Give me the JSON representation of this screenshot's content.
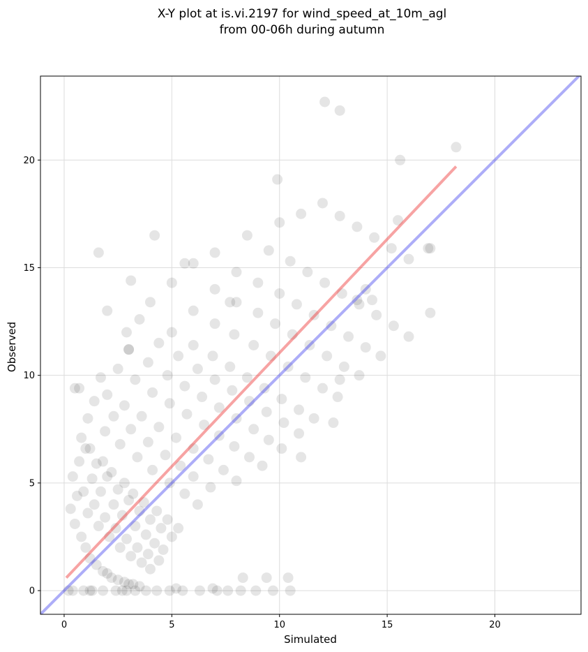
{
  "chart_data": {
    "type": "scatter",
    "title_lines": [
      "X-Y plot at is.vi.2197 for wind_speed_at_10m_agl",
      "from 00-06h during autumn"
    ],
    "xlabel": "Simulated",
    "ylabel": "Observed",
    "xlim": [
      -1.1,
      24
    ],
    "ylim": [
      -1.1,
      23.9
    ],
    "xticks": [
      0,
      5,
      10,
      15,
      20
    ],
    "yticks": [
      0,
      5,
      10,
      15,
      20
    ],
    "grid": true,
    "marker_color": "#000000",
    "marker_alpha": 0.1,
    "fit_line": {
      "color": "#ee3333",
      "alpha": 0.45,
      "x": [
        0.1,
        18.2
      ],
      "y": [
        0.6,
        19.7
      ]
    },
    "identity_line": {
      "color": "#3333ee",
      "alpha": 0.4,
      "x": [
        -1.1,
        24
      ],
      "y": [
        -1.1,
        24
      ]
    },
    "series": [
      {
        "x": [
          0.3,
          0.5,
          0.8,
          1.0,
          1.2,
          1.5,
          1.8,
          2.0,
          2.2,
          2.5,
          2.8,
          3.0,
          3.2,
          3.5,
          0.6,
          1.1,
          1.6,
          2.1,
          2.6,
          3.1,
          3.6,
          4.0,
          0.4,
          0.9,
          1.4,
          1.9,
          2.4,
          2.9,
          3.4,
          3.9,
          4.4,
          0.7,
          1.3,
          1.7,
          2.3,
          2.7,
          3.3,
          3.8,
          4.2,
          4.6,
          1.0,
          1.5,
          2.0,
          2.5,
          3.0,
          3.5,
          4.0,
          4.5,
          5.0,
          0.8,
          1.2,
          1.8,
          2.2,
          2.8,
          3.2,
          3.7,
          4.3,
          4.8,
          5.3,
          1.1,
          1.9,
          2.6,
          3.4,
          4.1,
          4.9,
          5.6,
          6.2,
          0.5,
          1.4,
          2.3,
          3.1,
          3.9,
          4.7,
          5.4,
          6.0,
          6.8,
          2.0,
          2.8,
          3.6,
          4.4,
          5.2,
          6.0,
          6.7,
          7.4,
          8.0,
          2.5,
          3.3,
          4.1,
          4.9,
          5.7,
          6.5,
          7.2,
          7.9,
          8.6,
          9.2,
          3.0,
          3.9,
          4.8,
          5.6,
          6.4,
          7.2,
          8.0,
          8.8,
          9.5,
          10.1,
          3.5,
          4.4,
          5.3,
          6.2,
          7.0,
          7.8,
          8.6,
          9.4,
          10.2,
          10.9,
          4.0,
          5.0,
          6.0,
          6.9,
          7.7,
          8.5,
          9.3,
          10.1,
          10.9,
          11.6,
          5.0,
          6.0,
          7.0,
          7.9,
          8.8,
          9.6,
          10.4,
          11.2,
          12.0,
          12.7,
          6.0,
          7.0,
          8.0,
          9.0,
          9.8,
          10.6,
          11.4,
          12.2,
          13.0,
          13.7,
          7.0,
          8.0,
          9.0,
          10.0,
          10.8,
          11.6,
          12.4,
          13.2,
          14.0,
          14.7,
          8.5,
          9.5,
          10.5,
          11.3,
          12.1,
          12.9,
          13.7,
          14.5,
          15.3,
          16.0,
          10.0,
          11.0,
          12.0,
          12.8,
          13.6,
          14.4,
          15.2,
          16.0,
          17.0,
          12.1,
          12.8,
          4.2,
          1.6,
          3.1,
          2.0,
          0.7,
          5.6,
          9.9,
          7.7,
          17.0,
          16.9,
          15.6,
          18.2,
          12.5,
          12.8,
          2.9,
          3.0,
          1.7,
          13.6,
          14.3,
          15.5,
          14.0,
          11.0,
          8.3,
          9.4,
          10.4,
          6.9,
          5.2,
          2.7,
          1.2,
          0.2,
          0.4,
          0.9,
          1.3,
          1.8,
          2.4,
          2.9,
          3.3,
          3.8,
          4.3,
          4.9,
          5.5,
          6.3,
          7.1,
          7.6,
          8.2,
          8.9,
          9.7,
          10.5
        ],
        "y": [
          3.8,
          3.1,
          2.5,
          2.0,
          1.5,
          1.2,
          0.9,
          0.8,
          0.6,
          0.5,
          0.4,
          0.3,
          0.3,
          0.2,
          4.4,
          3.6,
          3.0,
          2.5,
          2.0,
          1.6,
          1.3,
          1.0,
          5.3,
          4.6,
          4.0,
          3.4,
          2.9,
          2.4,
          2.0,
          1.7,
          1.4,
          6.0,
          5.2,
          4.6,
          4.0,
          3.5,
          3.0,
          2.6,
          2.2,
          1.9,
          6.6,
          5.9,
          5.3,
          4.7,
          4.2,
          3.7,
          3.3,
          2.9,
          2.5,
          7.1,
          6.6,
          6.0,
          5.5,
          5.0,
          4.5,
          4.1,
          3.7,
          3.3,
          2.9,
          8.0,
          7.4,
          6.8,
          6.2,
          5.6,
          5.0,
          4.5,
          4.0,
          9.4,
          8.8,
          8.1,
          7.5,
          6.9,
          6.3,
          5.8,
          5.3,
          4.8,
          9.1,
          8.6,
          8.1,
          7.6,
          7.1,
          6.6,
          6.1,
          5.6,
          5.1,
          10.3,
          9.8,
          9.2,
          8.7,
          8.2,
          7.7,
          7.2,
          6.7,
          6.2,
          5.8,
          11.2,
          10.6,
          10.0,
          9.5,
          9.0,
          8.5,
          8.0,
          7.5,
          7.0,
          6.6,
          12.6,
          11.5,
          10.9,
          10.3,
          9.8,
          9.3,
          8.8,
          8.3,
          7.8,
          7.3,
          13.4,
          12.0,
          11.4,
          10.9,
          10.4,
          9.9,
          9.4,
          8.9,
          8.4,
          8.0,
          14.3,
          13.0,
          12.4,
          11.9,
          11.4,
          10.9,
          10.4,
          9.9,
          9.4,
          9.0,
          15.2,
          14.0,
          13.4,
          12.9,
          12.4,
          11.9,
          11.4,
          10.9,
          10.4,
          10.0,
          15.7,
          14.8,
          14.3,
          13.8,
          13.3,
          12.8,
          12.3,
          11.8,
          11.3,
          10.9,
          16.5,
          15.8,
          15.3,
          14.8,
          14.3,
          13.8,
          13.3,
          12.8,
          12.3,
          11.8,
          17.1,
          17.5,
          18.0,
          17.4,
          16.9,
          16.4,
          15.9,
          15.4,
          15.9,
          22.7,
          22.3,
          16.5,
          15.7,
          14.4,
          13.0,
          9.4,
          15.2,
          19.1,
          13.4,
          12.9,
          15.9,
          20.0,
          20.6,
          7.8,
          9.8,
          12.0,
          11.2,
          9.9,
          13.5,
          13.5,
          17.2,
          14.0,
          6.2,
          0.6,
          0.6,
          0.6,
          0.1,
          0.1,
          0.0,
          0.0,
          0.0,
          0.0,
          0.0,
          0.0,
          0.0,
          0.0,
          0.0,
          0.0,
          0.0,
          0.0,
          0.0,
          0.0,
          0.0,
          0.0,
          0.0,
          0.0,
          0.0,
          0.0,
          0.0
        ]
      }
    ]
  }
}
